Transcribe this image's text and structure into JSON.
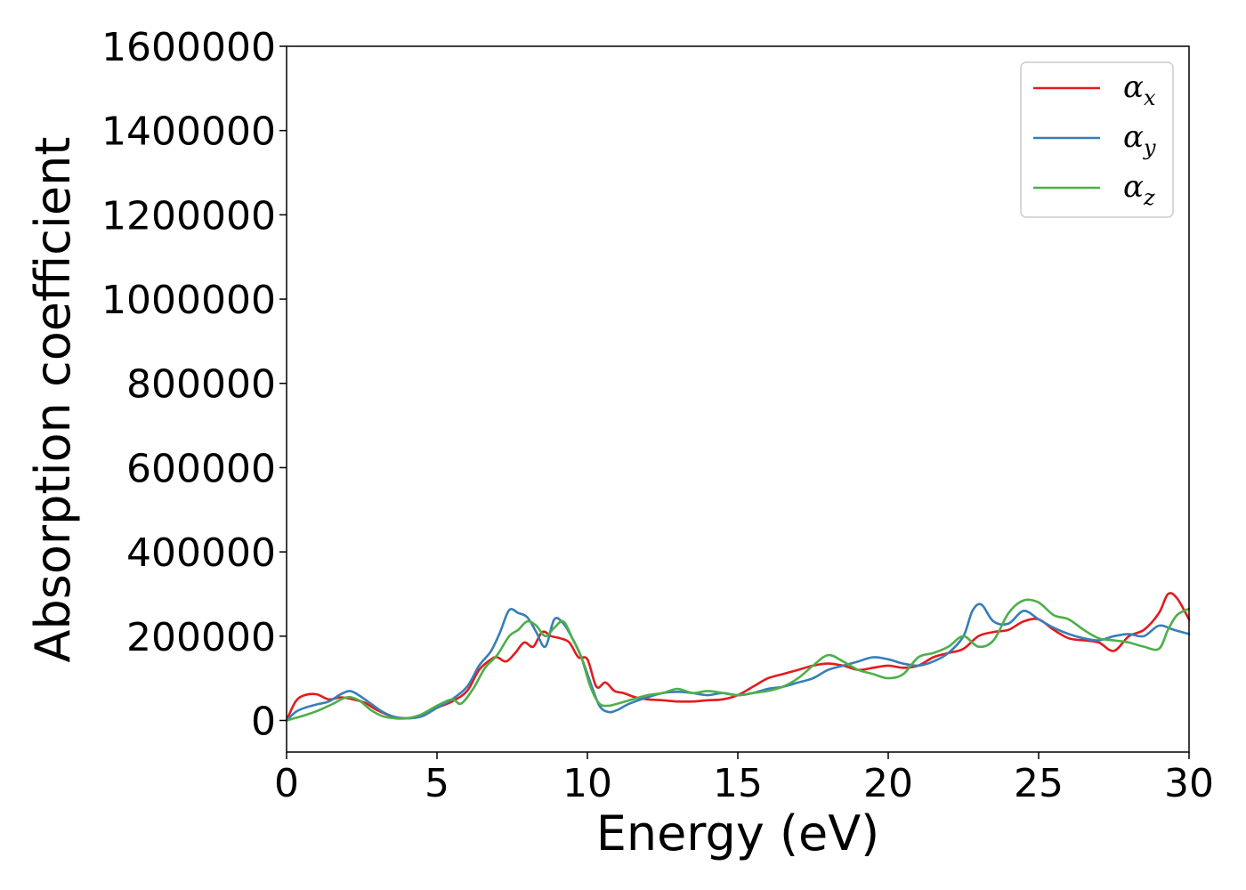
{
  "chart_data": {
    "type": "line",
    "title": "",
    "xlabel": "Energy (eV)",
    "ylabel": "Absorption coefficient",
    "xlim": [
      0,
      30
    ],
    "ylim": [
      -75000,
      1600000
    ],
    "xticks": [
      0,
      5,
      10,
      15,
      20,
      25,
      30
    ],
    "xtick_labels": [
      "0",
      "5",
      "10",
      "15",
      "20",
      "25",
      "30"
    ],
    "yticks": [
      0,
      200000,
      400000,
      600000,
      800000,
      1000000,
      1200000,
      1400000,
      1600000
    ],
    "ytick_labels": [
      "0",
      "200000",
      "400000",
      "600000",
      "800000",
      "1000000",
      "1200000",
      "1400000",
      "1600000"
    ],
    "grid": false,
    "legend_position": "top-right",
    "series": [
      {
        "name": "α",
        "subscript": "x",
        "color": "#e41a1c",
        "x": [
          0,
          0.3,
          0.6,
          1,
          1.4,
          1.8,
          2.2,
          2.6,
          3,
          3.5,
          4,
          4.5,
          5,
          5.5,
          6,
          6.4,
          6.8,
          7,
          7.3,
          7.6,
          7.9,
          8.2,
          8.5,
          8.8,
          9.1,
          9.4,
          9.7,
          10,
          10.3,
          10.6,
          10.9,
          11.2,
          11.6,
          12,
          12.5,
          13,
          13.5,
          14,
          14.5,
          15,
          15.5,
          16,
          16.5,
          17,
          17.5,
          18,
          18.5,
          19,
          19.5,
          20,
          20.5,
          21,
          21.5,
          22,
          22.5,
          23,
          23.5,
          24,
          24.5,
          25,
          25.5,
          26,
          26.5,
          27,
          27.5,
          28,
          28.5,
          29,
          29.3,
          29.6,
          30
        ],
        "y": [
          0,
          45000,
          60000,
          62000,
          50000,
          55000,
          50000,
          42000,
          25000,
          10000,
          5000,
          10000,
          30000,
          45000,
          70000,
          120000,
          145000,
          150000,
          140000,
          160000,
          185000,
          175000,
          210000,
          200000,
          195000,
          185000,
          150000,
          145000,
          80000,
          90000,
          70000,
          65000,
          55000,
          50000,
          48000,
          45000,
          45000,
          48000,
          50000,
          60000,
          80000,
          100000,
          110000,
          120000,
          130000,
          135000,
          130000,
          120000,
          125000,
          130000,
          125000,
          130000,
          150000,
          160000,
          170000,
          200000,
          210000,
          215000,
          235000,
          240000,
          215000,
          195000,
          190000,
          185000,
          165000,
          200000,
          215000,
          255000,
          300000,
          290000,
          240000
        ]
      },
      {
        "name": "α",
        "subscript": "y",
        "color": "#377eb8",
        "x": [
          0,
          0.3,
          0.6,
          1,
          1.4,
          1.8,
          2.1,
          2.4,
          2.8,
          3.2,
          3.6,
          4,
          4.5,
          5,
          5.5,
          6,
          6.4,
          6.8,
          7.1,
          7.4,
          7.7,
          8,
          8.3,
          8.6,
          8.9,
          9.2,
          9.5,
          9.8,
          10.1,
          10.4,
          10.7,
          11,
          11.4,
          12,
          12.5,
          13,
          13.5,
          14,
          14.5,
          15,
          15.5,
          16,
          16.5,
          17,
          17.5,
          18,
          18.5,
          19,
          19.5,
          20,
          20.5,
          21,
          21.5,
          22,
          22.5,
          22.8,
          23.1,
          23.5,
          24,
          24.5,
          25,
          25.5,
          26,
          26.5,
          27,
          27.5,
          28,
          28.5,
          29,
          29.5,
          30
        ],
        "y": [
          0,
          20000,
          30000,
          38000,
          45000,
          62000,
          70000,
          60000,
          40000,
          20000,
          8000,
          5000,
          10000,
          30000,
          50000,
          80000,
          130000,
          165000,
          210000,
          262000,
          255000,
          245000,
          210000,
          175000,
          240000,
          230000,
          195000,
          150000,
          90000,
          35000,
          20000,
          25000,
          40000,
          55000,
          65000,
          68000,
          65000,
          60000,
          65000,
          60000,
          65000,
          75000,
          80000,
          90000,
          100000,
          120000,
          130000,
          140000,
          150000,
          145000,
          135000,
          130000,
          140000,
          160000,
          200000,
          260000,
          275000,
          235000,
          230000,
          260000,
          240000,
          220000,
          205000,
          195000,
          190000,
          200000,
          205000,
          200000,
          225000,
          215000,
          205000
        ]
      },
      {
        "name": "α",
        "subscript": "z",
        "color": "#4daf4a",
        "x": [
          0,
          0.5,
          1,
          1.5,
          2,
          2.4,
          2.8,
          3.2,
          3.6,
          4,
          4.5,
          5,
          5.5,
          5.8,
          6.2,
          6.6,
          7,
          7.4,
          7.7,
          8,
          8.3,
          8.6,
          8.9,
          9.2,
          9.5,
          9.8,
          10.1,
          10.4,
          10.7,
          11,
          11.5,
          12,
          12.5,
          13,
          13.5,
          14,
          14.5,
          15,
          15.5,
          16,
          16.5,
          17,
          17.5,
          18,
          18.5,
          19,
          19.5,
          20,
          20.5,
          21,
          21.5,
          22,
          22.5,
          23,
          23.5,
          24,
          24.5,
          25,
          25.5,
          26,
          26.5,
          27,
          27.5,
          28,
          28.5,
          29,
          29.3,
          29.6,
          30
        ],
        "y": [
          0,
          10000,
          22000,
          38000,
          55000,
          48000,
          25000,
          10000,
          5000,
          5000,
          15000,
          35000,
          50000,
          40000,
          75000,
          125000,
          155000,
          200000,
          215000,
          235000,
          225000,
          200000,
          220000,
          235000,
          195000,
          150000,
          80000,
          40000,
          35000,
          40000,
          50000,
          60000,
          65000,
          75000,
          65000,
          70000,
          65000,
          60000,
          65000,
          70000,
          80000,
          100000,
          130000,
          155000,
          140000,
          120000,
          110000,
          100000,
          110000,
          150000,
          160000,
          175000,
          200000,
          175000,
          190000,
          255000,
          285000,
          280000,
          250000,
          240000,
          215000,
          195000,
          190000,
          185000,
          175000,
          170000,
          215000,
          250000,
          265000
        ]
      }
    ]
  }
}
